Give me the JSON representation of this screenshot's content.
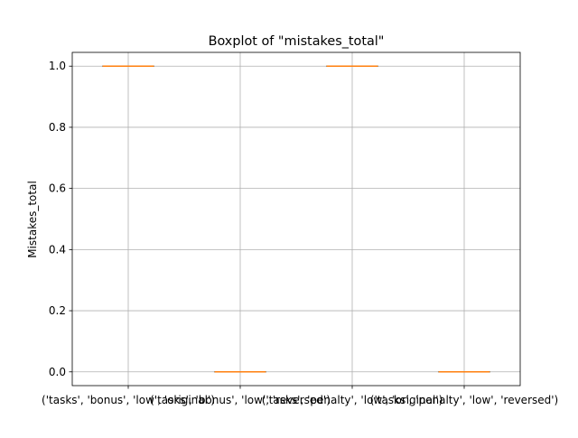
{
  "chart_data": {
    "type": "boxplot",
    "title": "Boxplot of \"mistakes_total\"",
    "xlabel": "",
    "ylabel": "Mistakes_total",
    "ylim": [
      -0.045,
      1.045
    ],
    "yticks": [
      0.0,
      0.2,
      0.4,
      0.6,
      0.8,
      1.0
    ],
    "ytick_labels": [
      "0.0",
      "0.2",
      "0.4",
      "0.6",
      "0.8",
      "1.0"
    ],
    "grid": true,
    "categories": [
      "('tasks', 'bonus', 'low', 'original')",
      "('tasks', 'bonus', 'low', 'reversed')",
      "('tasks', 'penalty', 'low', 'original')",
      "('tasks', 'penalty', 'low', 'reversed')"
    ],
    "boxes": [
      {
        "min": 1.0,
        "q1": 1.0,
        "median": 1.0,
        "q3": 1.0,
        "max": 1.0
      },
      {
        "min": 0.0,
        "q1": 0.0,
        "median": 0.0,
        "q3": 0.0,
        "max": 0.0
      },
      {
        "min": 1.0,
        "q1": 1.0,
        "median": 1.0,
        "q3": 1.0,
        "max": 1.0
      },
      {
        "min": 0.0,
        "q1": 0.0,
        "median": 0.0,
        "q3": 0.0,
        "max": 0.0
      }
    ],
    "colors": {
      "box": "#1f77b4",
      "median": "#ff7f0e",
      "grid": "#b0b0b0",
      "axes": "#000000"
    }
  }
}
